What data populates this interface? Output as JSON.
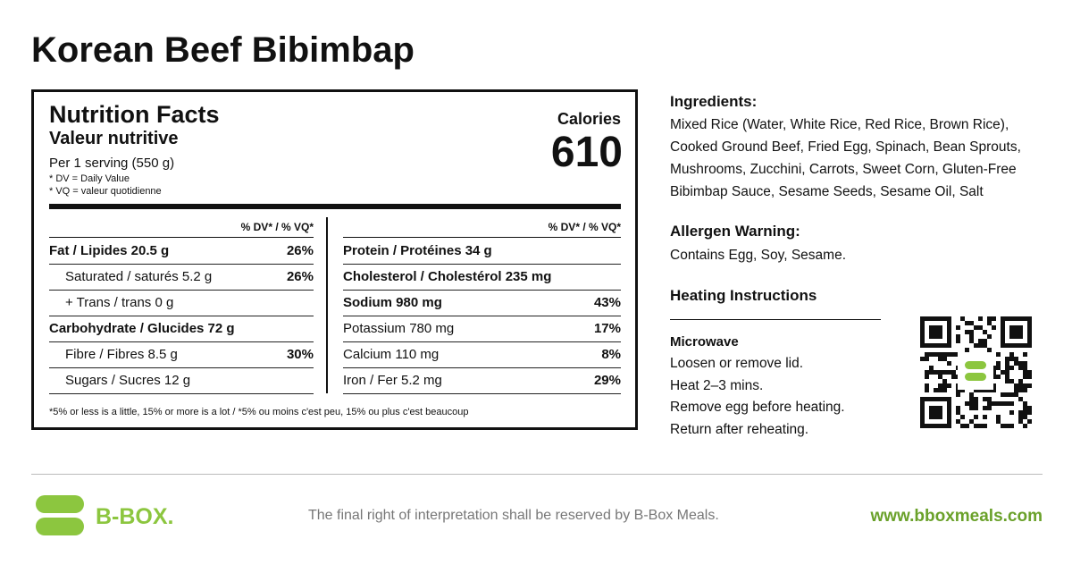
{
  "title": "Korean Beef Bibimbap",
  "nutrition": {
    "heading": "Nutrition Facts",
    "heading_fr": "Valeur nutritive",
    "serving": "Per 1 serving (550 g)",
    "notes": [
      "* DV = Daily Value",
      "* VQ = valeur quotidienne"
    ],
    "calories_label": "Calories",
    "calories": 610,
    "dv_headers": [
      "% DV* / % VQ*",
      "% DV* / % VQ*"
    ],
    "left_rows": [
      {
        "label": "Fat / Lipides 20.5 g",
        "dv": "26%",
        "bold": true
      },
      {
        "label": "Saturated / saturés 5.2 g",
        "dv": "26%",
        "indent": true
      },
      {
        "label": "+ Trans / trans 0 g",
        "indent": true
      },
      {
        "label": "Carbohydrate / Glucides 72 g",
        "bold": true
      },
      {
        "label": "Fibre / Fibres 8.5 g",
        "dv": "30%",
        "indent": true
      },
      {
        "label": "Sugars / Sucres 12 g",
        "indent": true
      }
    ],
    "right_rows": [
      {
        "label": "Protein / Protéines 34 g",
        "bold": true
      },
      {
        "label": "Cholesterol / Cholestérol 235 mg",
        "bold": true
      },
      {
        "label": "Sodium 980 mg",
        "dv": "43%",
        "bold": true
      },
      {
        "label": "Potassium 780 mg",
        "dv": "17%"
      },
      {
        "label": "Calcium 110 mg",
        "dv": "8%"
      },
      {
        "label": "Iron / Fer 5.2 mg",
        "dv": "29%"
      }
    ],
    "footnote": "*5% or less is a little, 15% or more is a lot / *5% ou moins c'est peu, 15% ou plus c'est beaucoup"
  },
  "ingredients": {
    "heading": "Ingredients:",
    "lines": [
      "Mixed Rice (Water, White Rice, Red Rice, Brown Rice),",
      "Cooked Ground Beef, Fried Egg, Spinach, Bean Sprouts,",
      "Mushrooms, Zucchini, Carrots, Sweet Corn, Gluten-Free",
      "Bibimbap Sauce, Sesame Seeds, Sesame Oil, Salt"
    ]
  },
  "allergen": {
    "heading": "Allergen Warning:",
    "text": "Contains Egg, Soy, Sesame."
  },
  "heating": {
    "heading": "Heating Instructions",
    "method": "Microwave",
    "steps": [
      "Loosen or remove lid.",
      "Heat 2–3 mins.",
      "Remove egg before heating.",
      "Return after reheating."
    ]
  },
  "footer": {
    "brand": "B-BOX.",
    "disclaimer": "The final right of interpretation shall be reserved by B-Box Meals.",
    "url": "www.bboxmeals.com"
  }
}
